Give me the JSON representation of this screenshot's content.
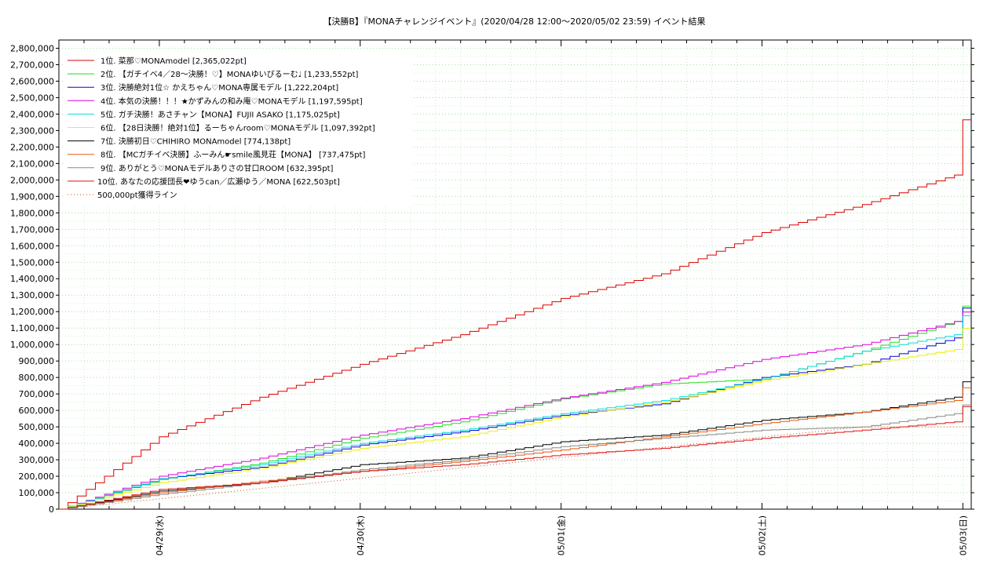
{
  "chart_data": {
    "type": "line",
    "title": "【決勝B】『MONAチャレンジイベント』(2020/04/28 12:00〜2020/05/02 23:59)          イベント結果",
    "xlabel": "",
    "ylabel": "",
    "ylim": [
      0,
      2850000
    ],
    "xlim": [
      "2020-04-28 12:00",
      "2020-05-03 01:00"
    ],
    "grid": true,
    "legend_position": "top-left",
    "x_ticks": [
      "04/29(水)",
      "04/30(木)",
      "05/01(金)",
      "05/02(土)",
      "05/03(日)"
    ],
    "y_ticks": [
      "0",
      "100,000",
      "200,000",
      "300,000",
      "400,000",
      "500,000",
      "600,000",
      "700,000",
      "800,000",
      "900,000",
      "1,000,000",
      "1,100,000",
      "1,200,000",
      "1,300,000",
      "1,400,000",
      "1,500,000",
      "1,600,000",
      "1,700,000",
      "1,800,000",
      "1,900,000",
      "2,000,000",
      "2,100,000",
      "2,200,000",
      "2,300,000",
      "2,400,000",
      "2,500,000",
      "2,600,000",
      "2,700,000",
      "2,800,000"
    ],
    "x_dates": [
      "2020-04-28 12:00",
      "2020-04-29 00:00",
      "2020-04-29 12:00",
      "2020-04-30 00:00",
      "2020-04-30 12:00",
      "2020-05-01 00:00",
      "2020-05-01 12:00",
      "2020-05-02 00:00",
      "2020-05-02 12:00",
      "2020-05-02 23:00",
      "2020-05-02 23:59",
      "2020-05-03 01:00"
    ],
    "series": [
      {
        "name": "1位. 菜那♡MONAmodel [2,365,022pt]",
        "color": "#dd0000",
        "dash": "",
        "values": [
          0,
          440000,
          680000,
          880000,
          1060000,
          1280000,
          1430000,
          1680000,
          1850000,
          2030000,
          2365022,
          2365022
        ]
      },
      {
        "name": "2位. 【ガチイベ4／28〜決勝！♡】MONAゆいぴるーむ♩ [1,233,552pt]",
        "color": "#22dd22",
        "dash": "",
        "values": [
          0,
          180000,
          280000,
          430000,
          530000,
          670000,
          760000,
          790000,
          960000,
          1140000,
          1233552,
          1233552
        ]
      },
      {
        "name": "3位. 決勝絶対1位☆ かえちゃん♡MONA専属モデル [1,222,204pt]",
        "color": "#0000dd",
        "dash": "",
        "values": [
          0,
          185000,
          255000,
          390000,
          470000,
          570000,
          640000,
          800000,
          880000,
          1040000,
          1222204,
          1222204
        ]
      },
      {
        "name": "4位. 本気の決勝！！！★かずみんの和み庵♡MONAモデル [1,197,595pt]",
        "color": "#dd00dd",
        "dash": "",
        "values": [
          0,
          200000,
          310000,
          450000,
          550000,
          675000,
          770000,
          910000,
          1000000,
          1140000,
          1197595,
          1197595
        ]
      },
      {
        "name": "5位. ガチ決勝！あさチャン【MONA】FUJII ASAKO [1,175,025pt]",
        "color": "#00dddd",
        "dash": "",
        "values": [
          0,
          185000,
          270000,
          400000,
          480000,
          580000,
          660000,
          790000,
          960000,
          1060000,
          1175025,
          1175025
        ]
      },
      {
        "name": "6位. 【28日決勝！絶対1位】るーちゃんroom♡MONAモデル [1,097,392pt]",
        "color": "#eeee00",
        "dash": "",
        "values": [
          0,
          160000,
          250000,
          370000,
          440000,
          560000,
          650000,
          780000,
          880000,
          970000,
          1097392,
          1097392
        ]
      },
      {
        "name": "7位. 決勝初日♡CHIHIRO MONAmodel [774,138pt]",
        "color": "#000000",
        "dash": "",
        "values": [
          0,
          110000,
          160000,
          270000,
          310000,
          410000,
          450000,
          540000,
          590000,
          680000,
          774138,
          774138
        ]
      },
      {
        "name": "8位. 【MCガチイベ決勝】ふーみん☛smile風見荘【MONA】 [737,475pt]",
        "color": "#e85810",
        "dash": "",
        "values": [
          0,
          100000,
          170000,
          230000,
          290000,
          360000,
          440000,
          520000,
          590000,
          660000,
          737475,
          737475
        ]
      },
      {
        "name": "9位. ありがとう♡MONAモデルありさの甘口ROOM [632,395pt]",
        "color": "#888888",
        "dash": "",
        "values": [
          0,
          90000,
          160000,
          240000,
          300000,
          380000,
          430000,
          480000,
          500000,
          580000,
          632395,
          632395
        ]
      },
      {
        "name": "10位. あなたの応援団長❤ゆうcan／広瀬ゆう／MONA [622,503pt]",
        "color": "#dd1111",
        "dash": "",
        "values": [
          0,
          120000,
          160000,
          230000,
          270000,
          330000,
          370000,
          430000,
          480000,
          530000,
          622503,
          622503
        ]
      },
      {
        "name": "500,000pt獲得ライン",
        "color": "#dd4422",
        "dash": "1,3",
        "values": [
          0,
          62500,
          125000,
          187500,
          250000,
          312500,
          375000,
          437500,
          500000,
          500000,
          500000,
          500000
        ]
      }
    ]
  }
}
